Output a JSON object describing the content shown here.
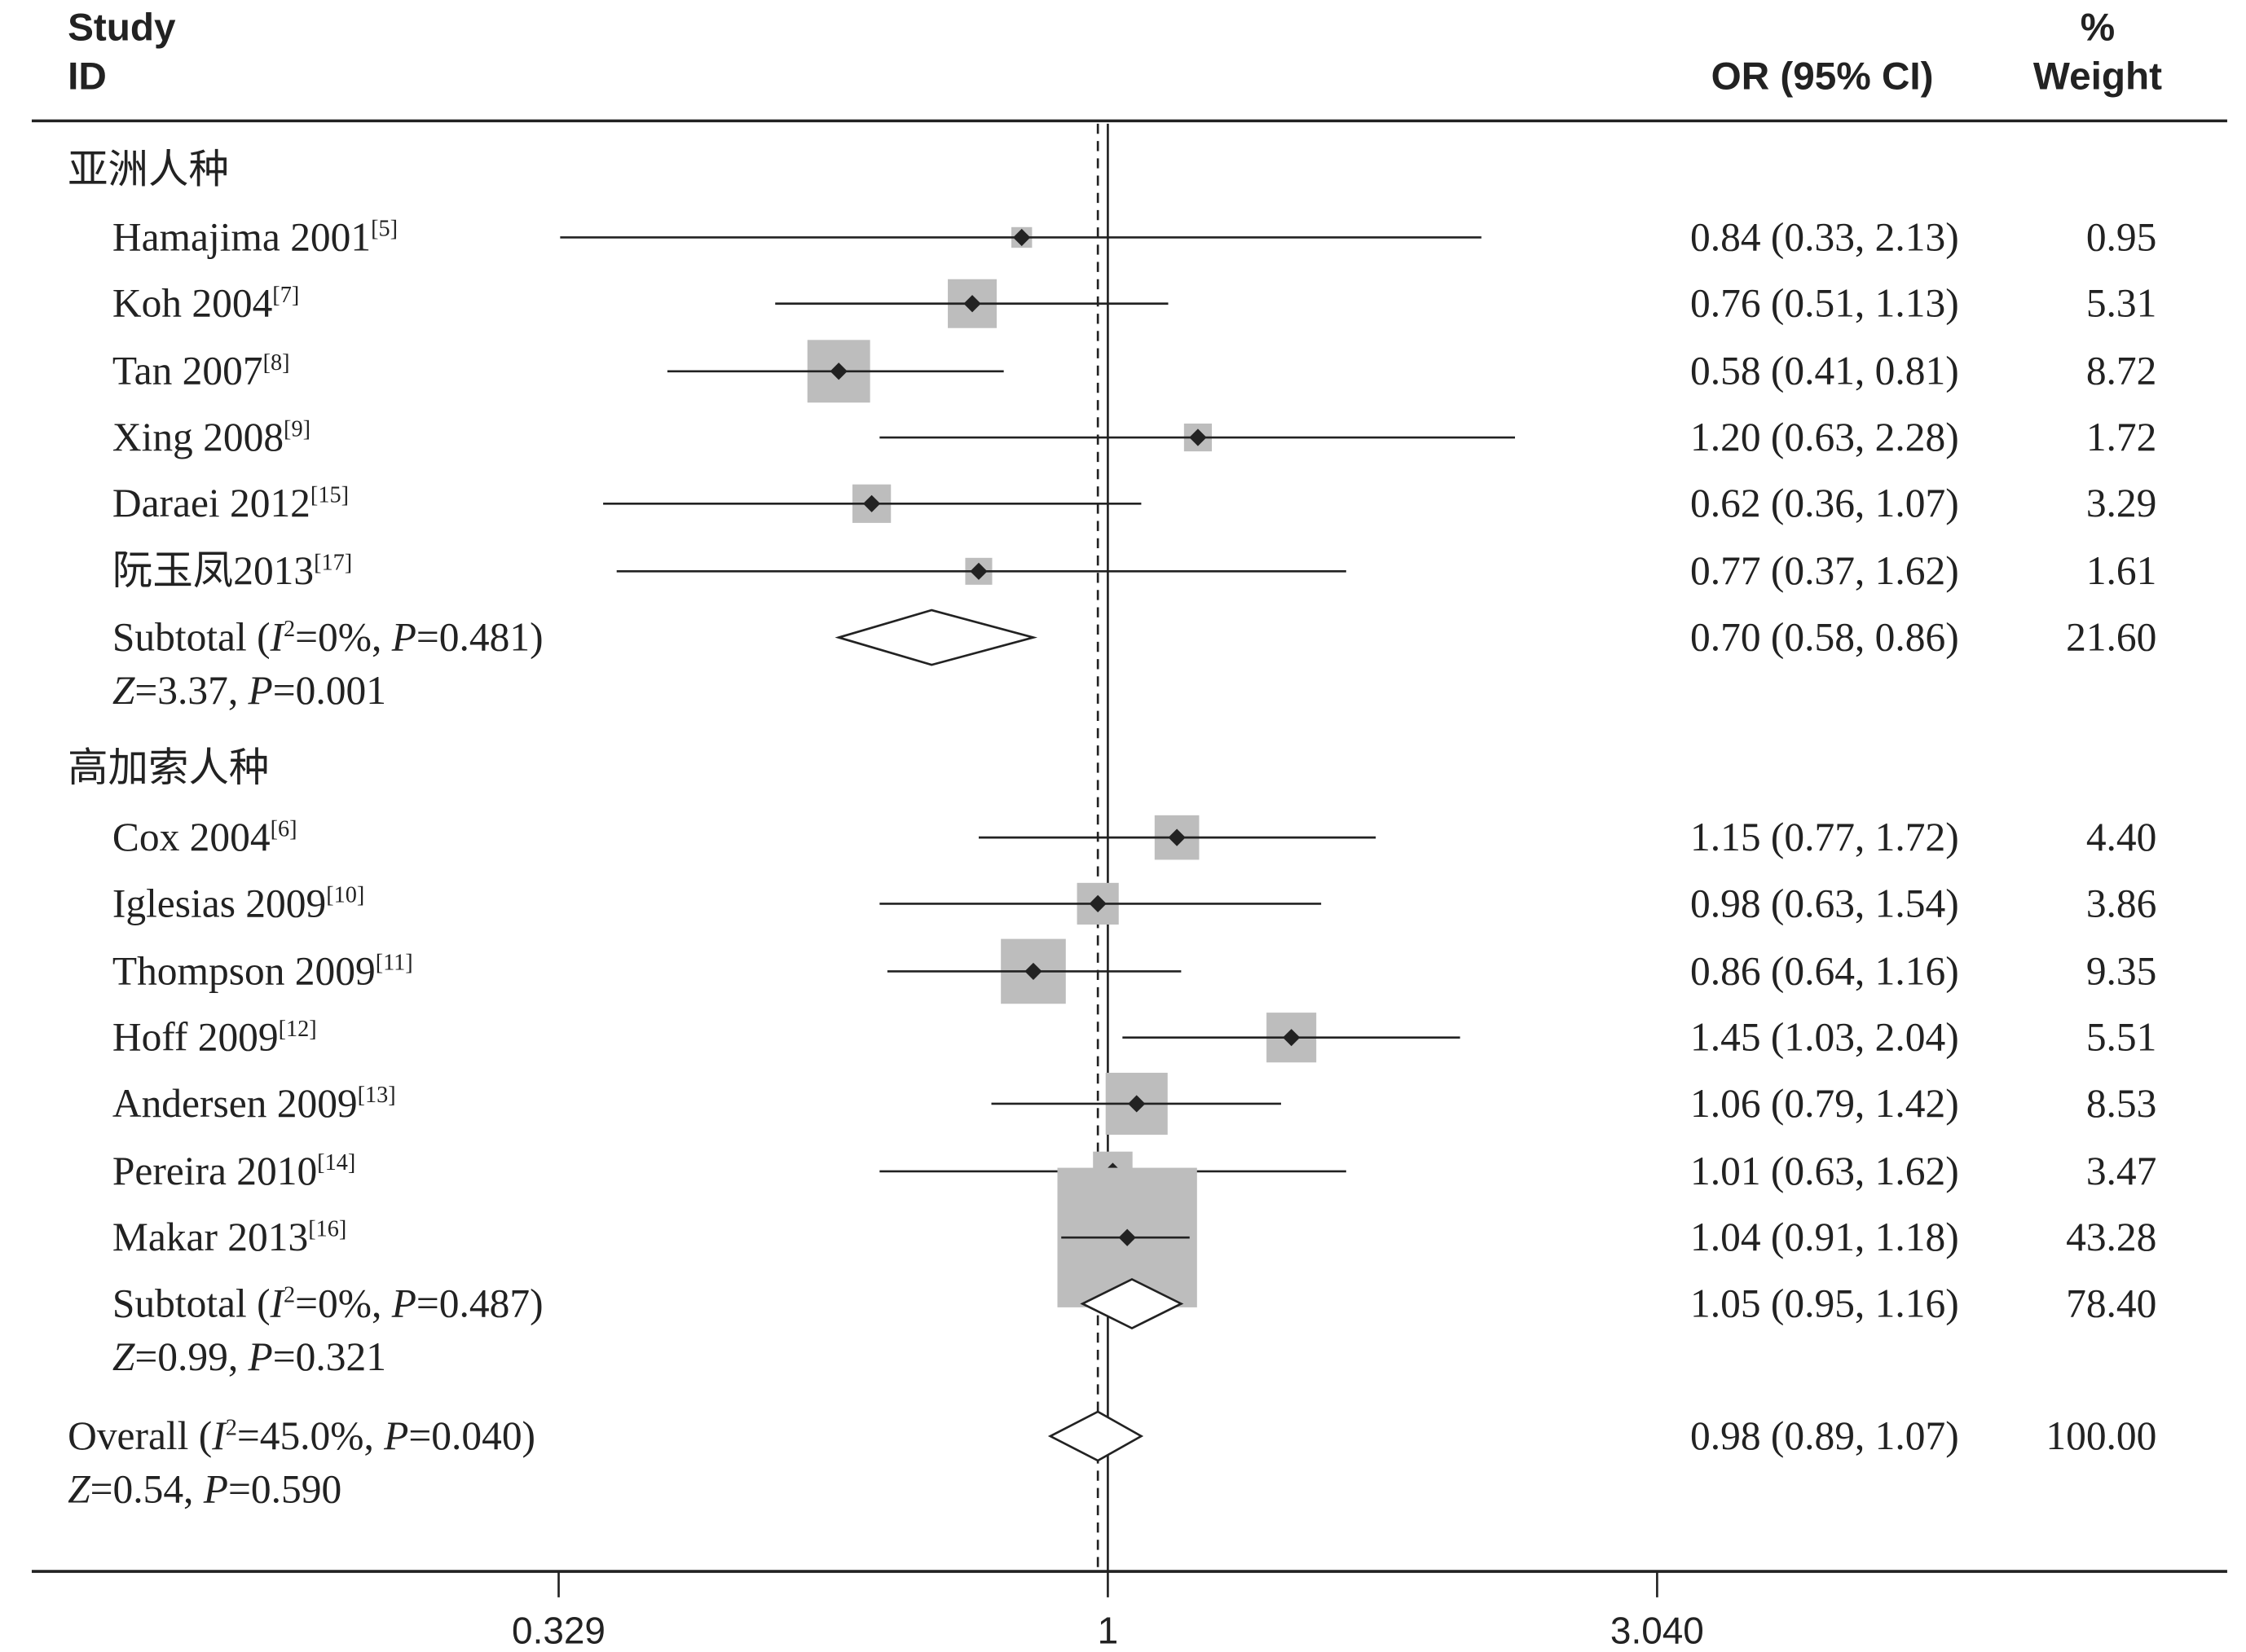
{
  "chart_data": {
    "type": "forest",
    "headers": {
      "study": "Study",
      "id": "ID",
      "or": "OR (95% CI)",
      "pct": "%",
      "weight": "Weight"
    },
    "x_scale": "log",
    "xlim": [
      0.329,
      3.04
    ],
    "ticks": [
      "0.329",
      "1",
      "3.040"
    ],
    "reference_line": 1,
    "overall_line": 0.98,
    "colors": {
      "box": "#bdbdbd",
      "line": "#222222"
    },
    "groups": [
      {
        "name": "亚洲人种",
        "studies": [
          {
            "label": "Hamajima 2001",
            "ref": "[5]",
            "or": 0.84,
            "lo": 0.33,
            "hi": 2.13,
            "ci_text": "0.84 (0.33, 2.13)",
            "weight": "0.95"
          },
          {
            "label": "Koh 2004",
            "ref": "[7]",
            "or": 0.76,
            "lo": 0.51,
            "hi": 1.13,
            "ci_text": "0.76 (0.51, 1.13)",
            "weight": "5.31"
          },
          {
            "label": "Tan 2007",
            "ref": "[8]",
            "or": 0.58,
            "lo": 0.41,
            "hi": 0.81,
            "ci_text": "0.58 (0.41, 0.81)",
            "weight": "8.72"
          },
          {
            "label": "Xing 2008",
            "ref": "[9]",
            "or": 1.2,
            "lo": 0.63,
            "hi": 2.28,
            "ci_text": "1.20 (0.63, 2.28)",
            "weight": "1.72"
          },
          {
            "label": "Daraei 2012",
            "ref": "[15]",
            "or": 0.62,
            "lo": 0.36,
            "hi": 1.07,
            "ci_text": "0.62 (0.36, 1.07)",
            "weight": "3.29"
          },
          {
            "label": "阮玉凤2013",
            "ref": "[17]",
            "or": 0.77,
            "lo": 0.37,
            "hi": 1.62,
            "ci_text": "0.77 (0.37, 1.62)",
            "weight": "1.61"
          }
        ],
        "subtotal": {
          "label": "Subtotal",
          "i2": "0%",
          "p": "0.481",
          "z": "3.37",
          "zp": "0.001",
          "or": 0.7,
          "lo": 0.58,
          "hi": 0.86,
          "ci_text": "0.70 (0.58, 0.86)",
          "weight": "21.60"
        }
      },
      {
        "name": "高加索人种",
        "studies": [
          {
            "label": "Cox 2004",
            "ref": "[6]",
            "or": 1.15,
            "lo": 0.77,
            "hi": 1.72,
            "ci_text": "1.15 (0.77, 1.72)",
            "weight": "4.40"
          },
          {
            "label": "Iglesias 2009",
            "ref": "[10]",
            "or": 0.98,
            "lo": 0.63,
            "hi": 1.54,
            "ci_text": "0.98 (0.63, 1.54)",
            "weight": "3.86"
          },
          {
            "label": "Thompson 2009",
            "ref": "[11]",
            "or": 0.86,
            "lo": 0.64,
            "hi": 1.16,
            "ci_text": "0.86 (0.64, 1.16)",
            "weight": "9.35"
          },
          {
            "label": "Hoff 2009",
            "ref": "[12]",
            "or": 1.45,
            "lo": 1.03,
            "hi": 2.04,
            "ci_text": "1.45 (1.03, 2.04)",
            "weight": "5.51"
          },
          {
            "label": "Andersen 2009",
            "ref": "[13]",
            "or": 1.06,
            "lo": 0.79,
            "hi": 1.42,
            "ci_text": "1.06 (0.79, 1.42)",
            "weight": "8.53"
          },
          {
            "label": "Pereira 2010",
            "ref": "[14]",
            "or": 1.01,
            "lo": 0.63,
            "hi": 1.62,
            "ci_text": "1.01 (0.63, 1.62)",
            "weight": "3.47"
          },
          {
            "label": "Makar 2013",
            "ref": "[16]",
            "or": 1.04,
            "lo": 0.91,
            "hi": 1.18,
            "ci_text": "1.04 (0.91, 1.18)",
            "weight": "43.28"
          }
        ],
        "subtotal": {
          "label": "Subtotal",
          "i2": "0%",
          "p": "0.487",
          "z": "0.99",
          "zp": "0.321",
          "or": 1.05,
          "lo": 0.95,
          "hi": 1.16,
          "ci_text": "1.05 (0.95, 1.16)",
          "weight": "78.40"
        }
      }
    ],
    "overall": {
      "label": "Overall",
      "i2": "45.0%",
      "p": "0.040",
      "z": "0.54",
      "zp": "0.590",
      "or": 0.98,
      "lo": 0.89,
      "hi": 1.07,
      "ci_text": "0.98 (0.89, 1.07)",
      "weight": "100.00"
    }
  }
}
